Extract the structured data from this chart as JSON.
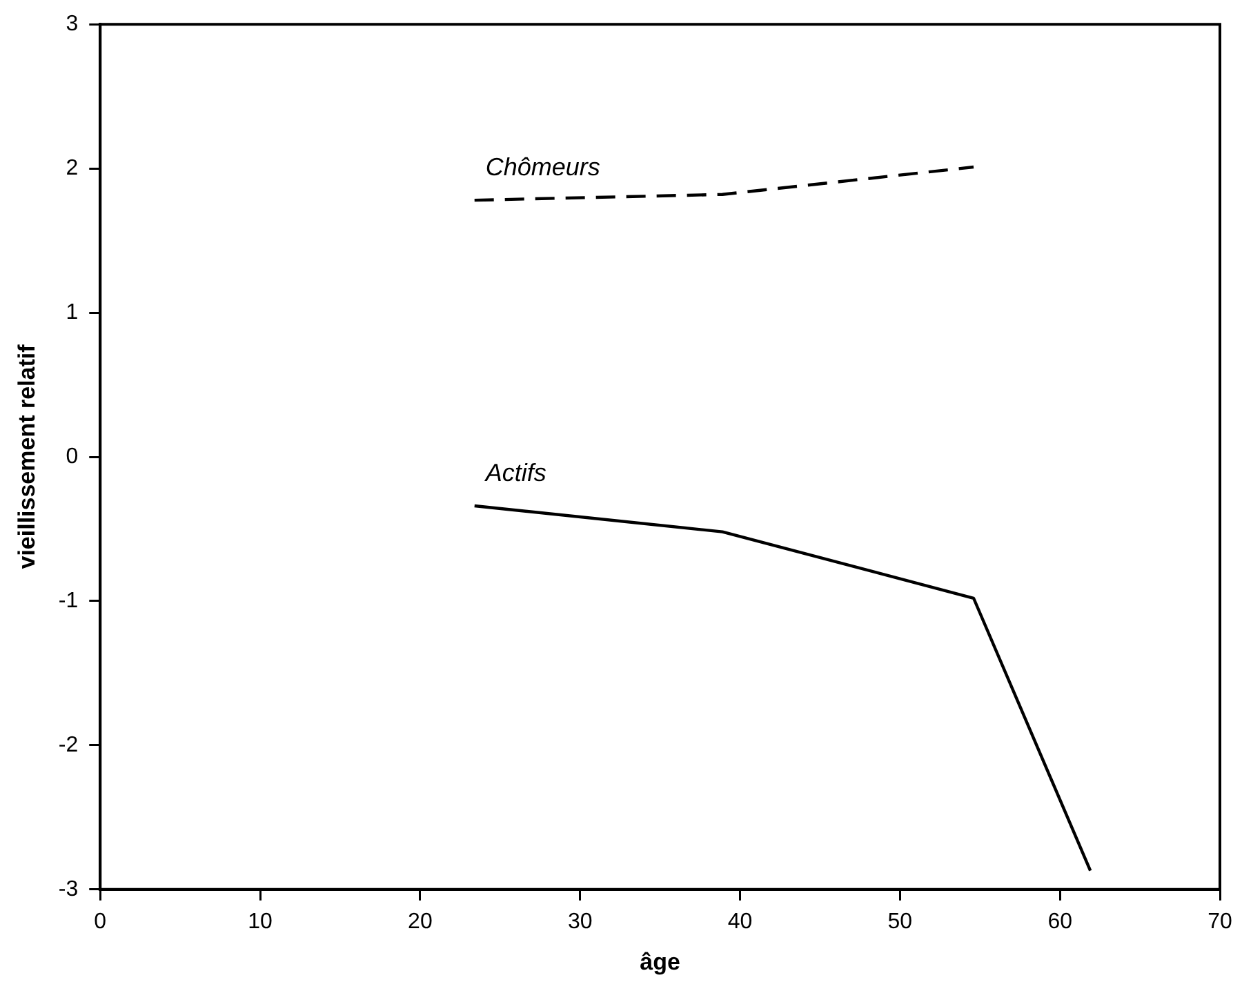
{
  "chart_data": {
    "type": "line",
    "xlabel": "âge",
    "ylabel": "vieillissement relatif",
    "xlim": [
      0,
      70
    ],
    "xticks": [
      0,
      10,
      20,
      30,
      40,
      50,
      60,
      70
    ],
    "ylim": [
      -3,
      3
    ],
    "yticks": [
      -3,
      -2,
      -1,
      0,
      1,
      2,
      3
    ],
    "grid": false,
    "legend": false,
    "marker": "none",
    "series": [
      {
        "name": "Chômeurs",
        "color": "#000000",
        "line_style": "dashed",
        "x": [
          23.4,
          38.9,
          54.6
        ],
        "values": [
          1.78,
          1.82,
          2.01
        ]
      },
      {
        "name": "Actifs",
        "color": "#000000",
        "line_style": "solid",
        "x": [
          23.4,
          38.9,
          54.6,
          61.9
        ],
        "values": [
          -0.34,
          -0.52,
          -0.98,
          -2.87
        ]
      }
    ]
  }
}
